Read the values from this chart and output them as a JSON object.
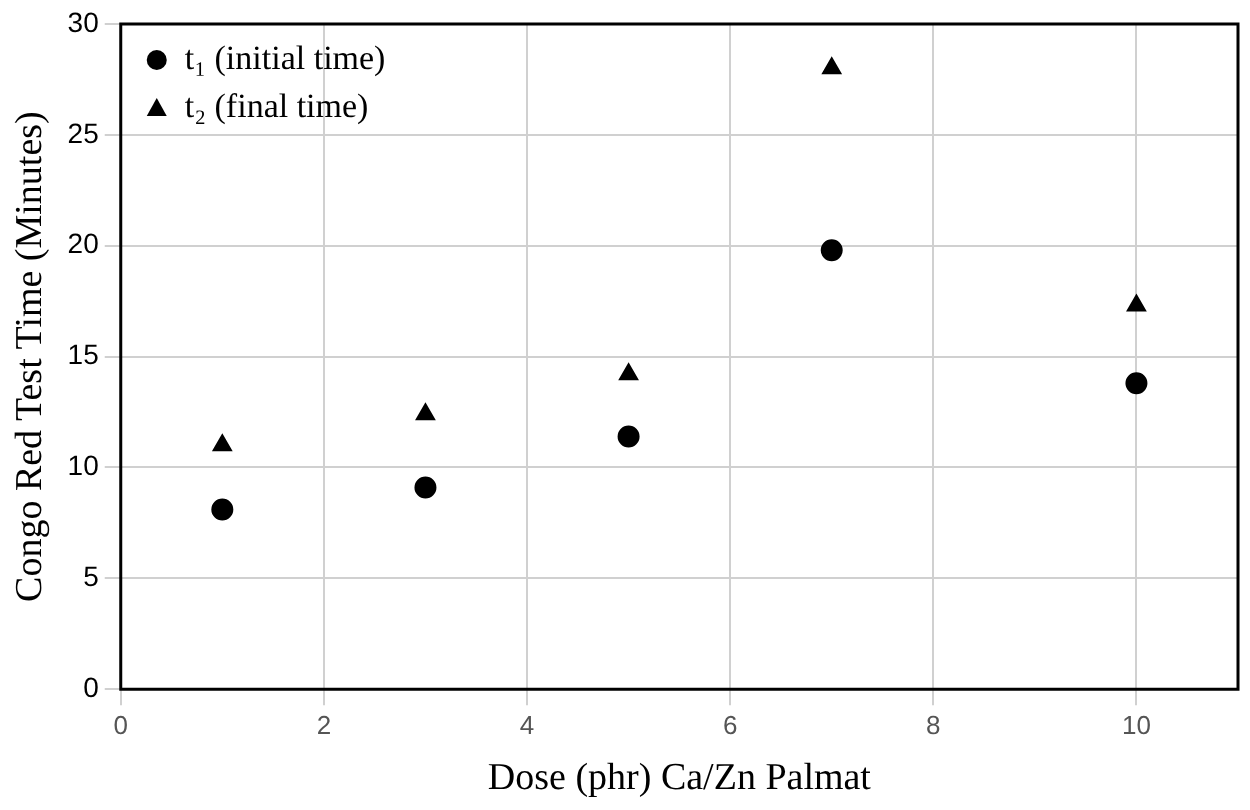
{
  "chart_data": {
    "type": "scatter",
    "xlabel": "Dose (phr) Ca/Zn Palmat",
    "ylabel": "Congo Red Test Time (Minutes)",
    "x": [
      1,
      3,
      5,
      7,
      10
    ],
    "series": [
      {
        "name": "t₁ (initial time)",
        "color": "#000000",
        "marker": "circle",
        "values": [
          8.1,
          9.1,
          11.4,
          19.8,
          13.8
        ]
      },
      {
        "name": "t₂ (final time)",
        "color": "#000000",
        "marker": "triangle",
        "values": [
          11.0,
          12.4,
          14.2,
          28.0,
          17.3
        ]
      }
    ],
    "xlim": [
      0,
      11
    ],
    "xticks": [
      0,
      2,
      4,
      6,
      8,
      10
    ],
    "ylim": [
      0,
      30
    ],
    "yticks": [
      0,
      5,
      10,
      15,
      20,
      25,
      30
    ],
    "grid": true,
    "legend": "top left"
  }
}
